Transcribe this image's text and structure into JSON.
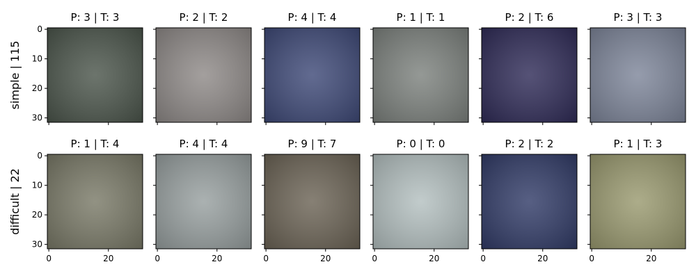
{
  "figure": {
    "xticks": [
      0,
      20
    ],
    "yticks": [
      0,
      10,
      20,
      30
    ],
    "extent": [
      -0.5,
      31.5
    ],
    "rows": [
      {
        "label": "simple | 115",
        "panels": [
          {
            "title": "P: 3 | T: 3",
            "color": "#4c564c"
          },
          {
            "title": "P: 2 | T: 2",
            "color": "#8f8a88"
          },
          {
            "title": "P: 4 | T: 4",
            "color": "#3f4a78"
          },
          {
            "title": "P: 1 | T: 1",
            "color": "#7d827e"
          },
          {
            "title": "P: 2 | T: 6",
            "color": "#302c58"
          },
          {
            "title": "P: 3 | T: 3",
            "color": "#7e869a"
          }
        ]
      },
      {
        "label": "difficult | 22",
        "panels": [
          {
            "title": "P: 1 | T: 4",
            "color": "#7a7a68"
          },
          {
            "title": "P: 4 | T: 4",
            "color": "#98a0a0"
          },
          {
            "title": "P: 9 | T: 7",
            "color": "#6c6456"
          },
          {
            "title": "P: 0 | T: 0",
            "color": "#b4c0c0"
          },
          {
            "title": "P: 2 | T: 2",
            "color": "#323c68"
          },
          {
            "title": "P: 1 | T: 3",
            "color": "#9a9a70"
          }
        ]
      }
    ]
  }
}
